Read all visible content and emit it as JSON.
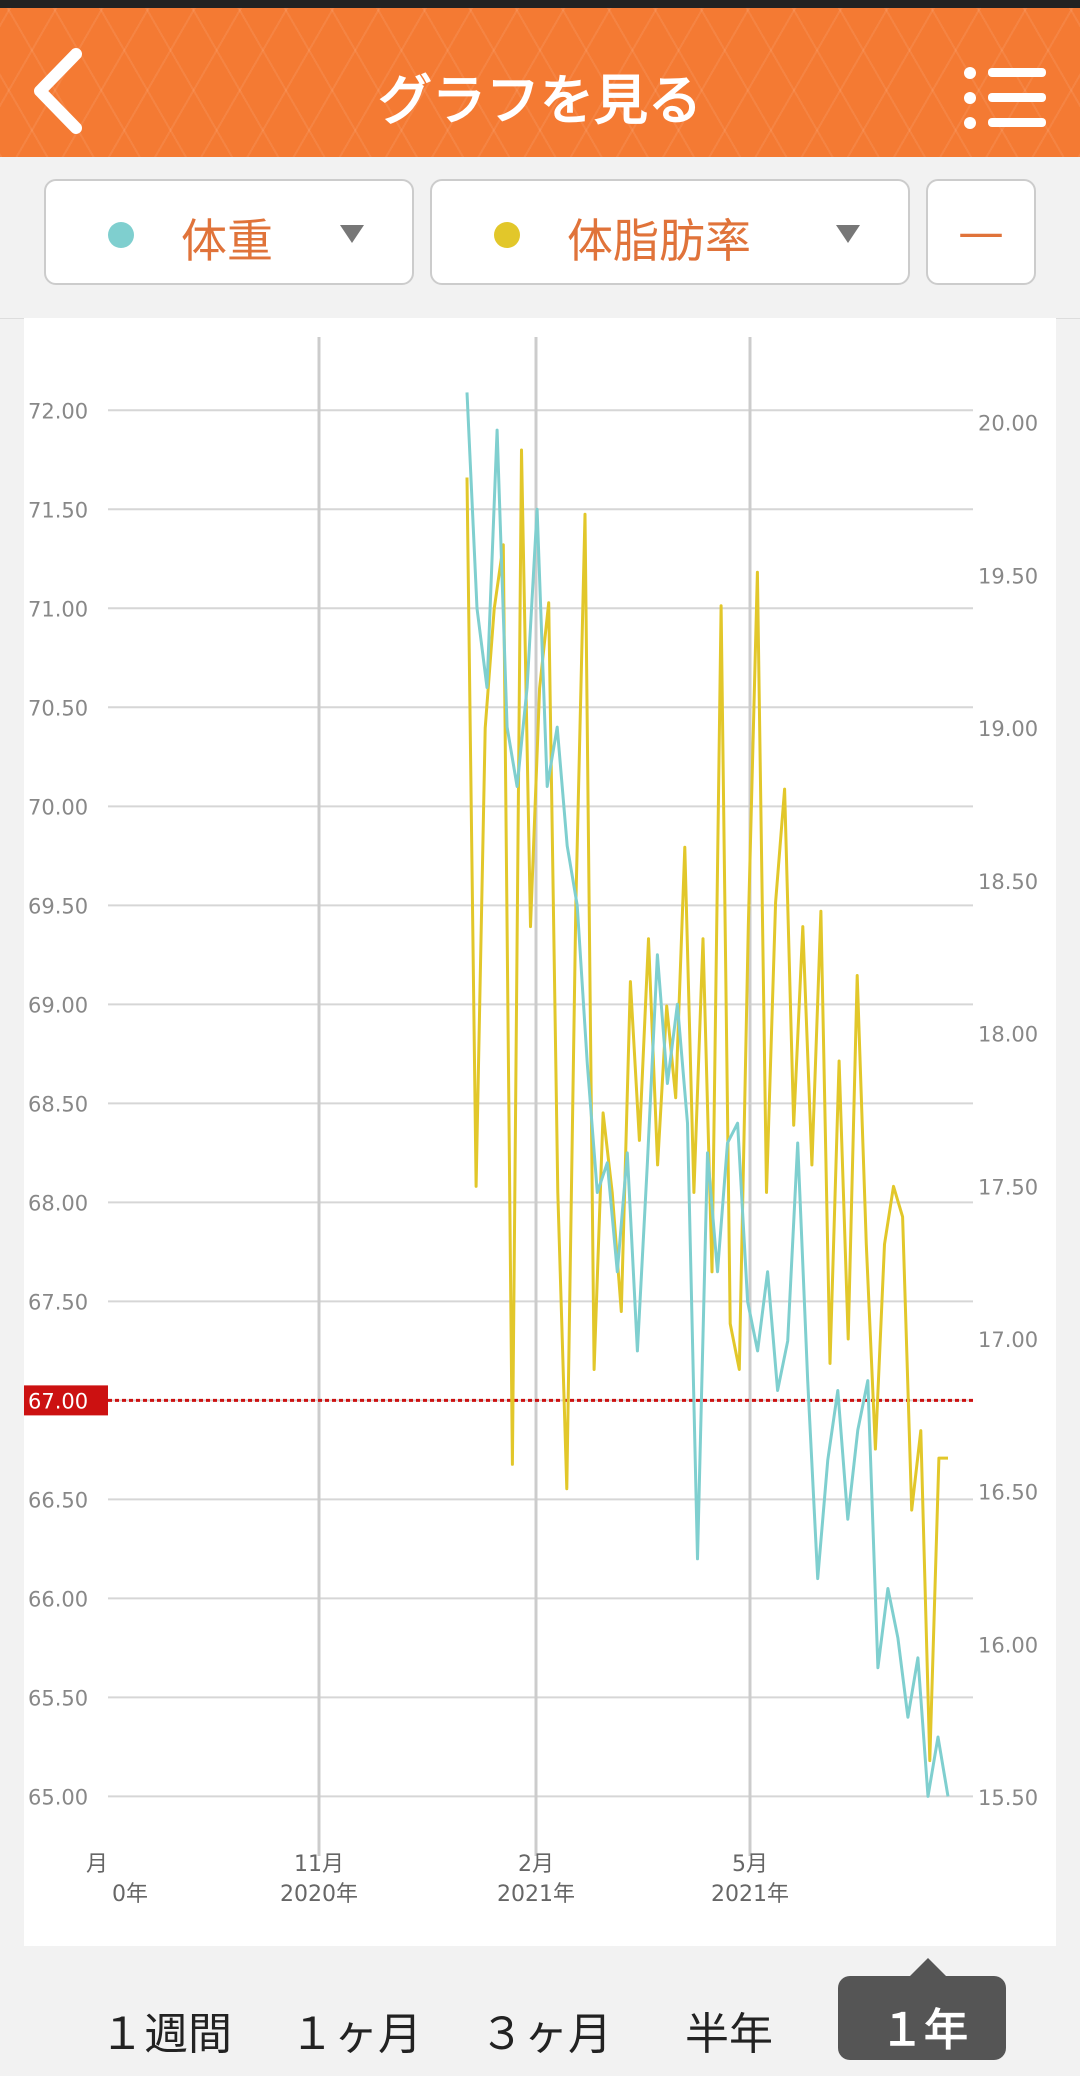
{
  "header": {
    "title": "グラフを見る"
  },
  "selectors": [
    {
      "label": "体重"
    },
    {
      "label": "体脂肪率"
    },
    {
      "label": "—"
    }
  ],
  "chart_data": {
    "type": "line",
    "ylim": [
      64.78,
      72.37
    ],
    "yticks": [
      {
        "value": 65,
        "label": "65.00"
      },
      {
        "value": 65.5,
        "label": "65.50"
      },
      {
        "value": 66,
        "label": "66.00"
      },
      {
        "value": 66.5,
        "label": "66.50"
      },
      {
        "value": 67,
        "label": "67.00"
      },
      {
        "value": 67.5,
        "label": "67.50"
      },
      {
        "value": 68,
        "label": "68.00"
      },
      {
        "value": 68.5,
        "label": "68.50"
      },
      {
        "value": 69,
        "label": "69.00"
      },
      {
        "value": 69.5,
        "label": "69.50"
      },
      {
        "value": 70,
        "label": "70.00"
      },
      {
        "value": 70.5,
        "label": "70.50"
      },
      {
        "value": 71,
        "label": "71.00"
      },
      {
        "value": 71.5,
        "label": "71.50"
      },
      {
        "value": 72,
        "label": "72.00"
      }
    ],
    "y2lim": [
      15.36,
      20.28
    ],
    "y2ticks": [
      {
        "value": 15.5,
        "label": "15.50"
      },
      {
        "value": 16,
        "label": "16.00"
      },
      {
        "value": 16.5,
        "label": "16.50"
      },
      {
        "value": 17,
        "label": "17.00"
      },
      {
        "value": 17.5,
        "label": "17.50"
      },
      {
        "value": 18,
        "label": "18.00"
      },
      {
        "value": 18.5,
        "label": "18.50"
      },
      {
        "value": 19,
        "label": "19.00"
      },
      {
        "value": 19.5,
        "label": "19.50"
      },
      {
        "value": 20,
        "label": "20.00"
      }
    ],
    "xticks": [
      {
        "month": "月",
        "year": "0年"
      },
      {
        "month": "11月",
        "year": "2020年"
      },
      {
        "month": "2月",
        "year": "2021年"
      },
      {
        "month": "5月",
        "year": "2021年"
      }
    ],
    "target": {
      "value": 67,
      "label": "67.00",
      "color": "#cc1111"
    },
    "grid": true,
    "series": [
      {
        "name": "体重",
        "color": "#7fcfcf",
        "values": [
          72.09,
          71.0,
          70.6,
          71.9,
          70.4,
          70.1,
          70.6,
          71.5,
          70.1,
          70.4,
          69.8,
          69.5,
          68.7,
          68.05,
          68.2,
          67.65,
          68.25,
          67.25,
          68.2,
          69.25,
          68.6,
          69.0,
          68.4,
          66.2,
          68.25,
          67.65,
          68.3,
          68.4,
          67.5,
          67.25,
          67.65,
          67.05,
          67.3,
          68.3,
          67.1,
          66.1,
          66.7,
          67.05,
          66.4,
          66.85,
          67.1,
          65.65,
          66.05,
          65.8,
          65.4,
          65.7,
          65.0,
          65.3,
          65.0
        ]
      },
      {
        "name": "体脂肪率",
        "color": "#e2c72a",
        "axis": "y2",
        "values": [
          19.82,
          17.5,
          19.0,
          19.39,
          19.6,
          16.59,
          19.91,
          18.35,
          19.13,
          19.41,
          17.48,
          16.51,
          18.43,
          19.7,
          16.9,
          17.74,
          17.48,
          17.09,
          18.17,
          17.65,
          18.31,
          17.57,
          18.09,
          17.79,
          18.61,
          17.48,
          18.31,
          17.22,
          19.4,
          17.05,
          16.9,
          18.35,
          19.51,
          17.48,
          18.43,
          18.8,
          17.7,
          18.35,
          17.57,
          18.4,
          16.92,
          17.91,
          17.0,
          18.19,
          17.31,
          16.64,
          17.31,
          17.5,
          17.4,
          16.44,
          16.7,
          15.62,
          16.61,
          16.61
        ]
      }
    ]
  },
  "tabs": [
    "１週間",
    "１ヶ月",
    "３ヶ月",
    "半年",
    "１年"
  ]
}
